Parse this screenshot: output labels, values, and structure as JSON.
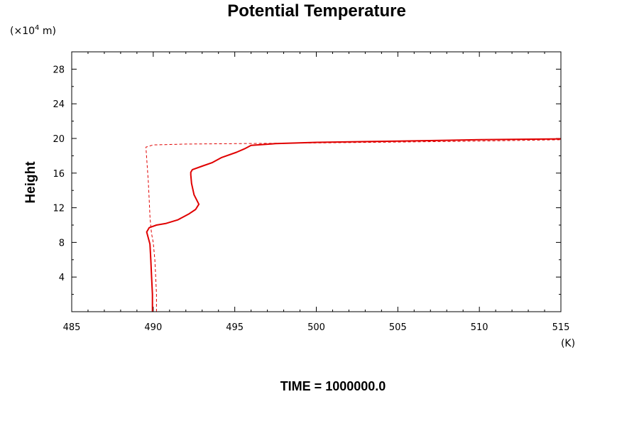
{
  "chart_data": {
    "type": "line",
    "title": "Potential Temperature",
    "ylabel": "Height",
    "xunit": "(K)",
    "yunit": {
      "open": "(",
      "times": "×",
      "base": "10",
      "exp": "4",
      "rest": " m)"
    },
    "footer": "TIME = 1000000.0",
    "xlim": [
      485,
      515
    ],
    "ylim": [
      0,
      30
    ],
    "x_ticks": [
      485,
      490,
      495,
      500,
      505,
      510,
      515
    ],
    "y_ticks": [
      4,
      8,
      12,
      16,
      20,
      24,
      28
    ],
    "grid": false,
    "line_color": "#e00000",
    "series": [
      {
        "style": "solid",
        "x": [
          489.95,
          489.95,
          489.9,
          489.85,
          489.8,
          489.6,
          489.75,
          490.2,
          490.8,
          491.5,
          492.2,
          492.6,
          492.8,
          492.5,
          492.35,
          492.3,
          492.3,
          492.4,
          493.0,
          493.6,
          494.2,
          495.1,
          495.6,
          496.0,
          497.5,
          500,
          505,
          510,
          515
        ],
        "y": [
          0,
          2,
          4,
          6,
          7.8,
          9.2,
          9.7,
          10.0,
          10.2,
          10.6,
          11.3,
          11.8,
          12.4,
          13.5,
          14.8,
          15.8,
          16.1,
          16.4,
          16.8,
          17.2,
          17.8,
          18.4,
          18.8,
          19.2,
          19.4,
          19.55,
          19.7,
          19.85,
          19.95
        ]
      },
      {
        "style": "dashed",
        "x": [
          490.2,
          490.2,
          490.15,
          490.1,
          490.0,
          489.9,
          489.85,
          489.8,
          489.75,
          489.7,
          489.55,
          490.0,
          492.0,
          496.0,
          500,
          505,
          510,
          515
        ],
        "y": [
          0,
          2,
          4,
          6,
          8,
          9,
          9.8,
          11,
          13,
          15,
          19.0,
          19.25,
          19.35,
          19.42,
          19.48,
          19.58,
          19.7,
          19.85
        ]
      }
    ]
  }
}
